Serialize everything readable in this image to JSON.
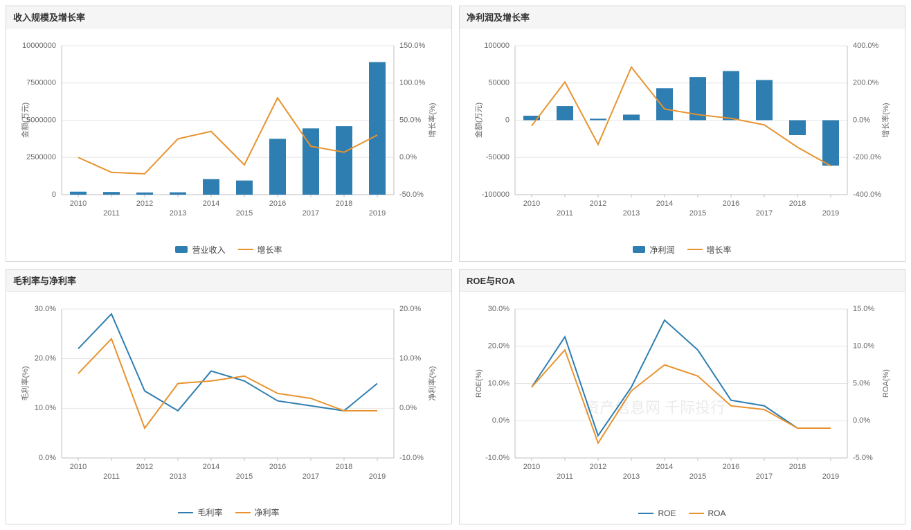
{
  "colors": {
    "bar": "#2f7eb1",
    "line1": "#e8932f",
    "line_blue": "#2f7eb1",
    "line_orange": "#e8932f",
    "grid": "#e6e6e6",
    "axis": "#bfbfbf",
    "text": "#666666",
    "panel_border": "#d8d8d8"
  },
  "years": [
    "2010",
    "2011",
    "2012",
    "2013",
    "2014",
    "2015",
    "2016",
    "2017",
    "2018",
    "2019"
  ],
  "panels": {
    "revenue": {
      "title": "收入规模及增长率",
      "y1_label": "金额(万元)",
      "y2_label": "增长率(%)",
      "y1_min": 0,
      "y1_max": 10000000,
      "y1_step": 2500000,
      "y2_min": -50,
      "y2_max": 150,
      "y2_step": 50,
      "bars": [
        200000,
        180000,
        150000,
        160000,
        1050000,
        950000,
        3750000,
        4450000,
        4600000,
        8900000
      ],
      "line": [
        0,
        -20,
        -22,
        25,
        35,
        -10,
        80,
        15,
        7,
        30
      ],
      "legend_bar": "营业收入",
      "legend_line": "增长率"
    },
    "profit": {
      "title": "净利润及增长率",
      "y1_label": "金额(万元)",
      "y2_label": "增长率(%)",
      "y1_min": -100000,
      "y1_max": 100000,
      "y1_step": 50000,
      "y2_min": -400,
      "y2_max": 400,
      "y2_step": 200,
      "bars": [
        6000,
        19000,
        2000,
        7500,
        43000,
        58000,
        66000,
        54000,
        -20000,
        -61000
      ],
      "line": [
        -30,
        205,
        -130,
        285,
        60,
        30,
        10,
        -25,
        -145,
        -245
      ],
      "legend_bar": "净利润",
      "legend_line": "增长率"
    },
    "margin": {
      "title": "毛利率与净利率",
      "y1_label": "毛利率(%)",
      "y2_label": "净利率(%)",
      "y1_min": 0,
      "y1_max": 30,
      "y1_step": 10,
      "y2_min": -10,
      "y2_max": 20,
      "y2_step": 10,
      "series1": [
        22,
        29,
        13.5,
        9.5,
        17.5,
        15.5,
        11.5,
        10.5,
        9.5,
        15
      ],
      "series2": [
        7,
        14,
        -4,
        5,
        5.5,
        6.5,
        3,
        2,
        -0.5,
        -0.5
      ],
      "legend1": "毛利率",
      "legend2": "净利率"
    },
    "roe": {
      "title": "ROE与ROA",
      "y1_label": "ROE(%)",
      "y2_label": "ROA(%)",
      "y1_min": -10,
      "y1_max": 30,
      "y1_step": 10,
      "y2_min": -5,
      "y2_max": 15,
      "y2_step": 5,
      "series1": [
        9,
        22.5,
        -4,
        9,
        27,
        19,
        5.5,
        4,
        -2,
        -2
      ],
      "series2": [
        4.5,
        9.5,
        -3,
        4,
        7.5,
        6,
        2,
        1.5,
        -1,
        -1
      ],
      "legend1": "ROE",
      "legend2": "ROA",
      "watermark": "资产信息网   千际投行"
    }
  }
}
